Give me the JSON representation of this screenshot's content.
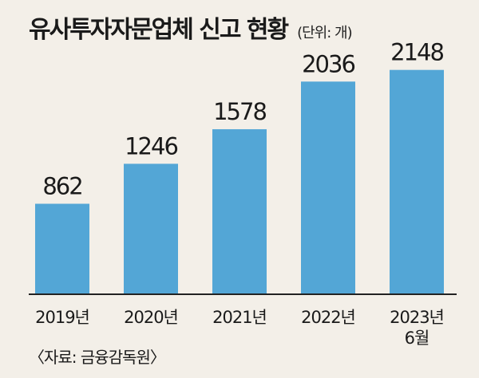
{
  "title": "유사투자자문업체 신고 현황",
  "unit": "(단위: 개)",
  "source": "〈자료: 금융감독원〉",
  "colors": {
    "bar": "#53a6d6",
    "background": "#f3efe8",
    "axis": "#222222"
  },
  "chart_data": {
    "type": "bar",
    "title": "유사투자자문업체 신고 현황",
    "unit": "(단위: 개)",
    "categories": [
      "2019년",
      "2020년",
      "2021년",
      "2022년",
      "2023년|6월"
    ],
    "values": [
      862,
      1246,
      1578,
      2036,
      2148
    ],
    "ylim": [
      0,
      2500
    ],
    "grid": false,
    "legend": "none"
  }
}
